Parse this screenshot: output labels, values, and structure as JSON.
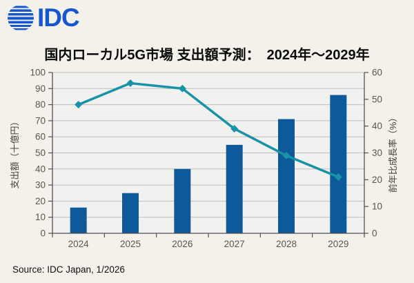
{
  "logo": {
    "text": "IDC",
    "color": "#1757CE"
  },
  "title": {
    "text": "国内ローカル5G市場 支出額予測：　2024年～2029年"
  },
  "chart_data": {
    "type": "bar",
    "subtype": "combo-bar-line-dual-axis",
    "title": "国内ローカル5G市場 支出額予測： 2024年～2029年",
    "categories": [
      "2024",
      "2025",
      "2026",
      "2027",
      "2028",
      "2029"
    ],
    "series": [
      {
        "name": "支出額",
        "chart": "bar",
        "axis": "left",
        "values": [
          16,
          25,
          40,
          55,
          71,
          86
        ],
        "color": "#0D5999"
      },
      {
        "name": "前年比成長率",
        "chart": "line",
        "axis": "right",
        "values": [
          48,
          56,
          54,
          39,
          29,
          21
        ],
        "color": "#1892A5",
        "marker": "diamond"
      }
    ],
    "left_axis": {
      "label": "支出額（十億円）",
      "min": 0,
      "max": 100,
      "step": 10
    },
    "right_axis": {
      "label": "前年比成長率（%）",
      "min": 0,
      "max": 60,
      "step": 10
    },
    "grid": true,
    "legend": "none",
    "plot_background": "#f1f1f0",
    "gridline_color": "#bfbebc",
    "axis_color": "#4f4f4f",
    "tick_label_color": "#5a564e",
    "axis_title_color": "#46423c"
  },
  "source": {
    "text": "Source: IDC Japan, 1/2026"
  }
}
